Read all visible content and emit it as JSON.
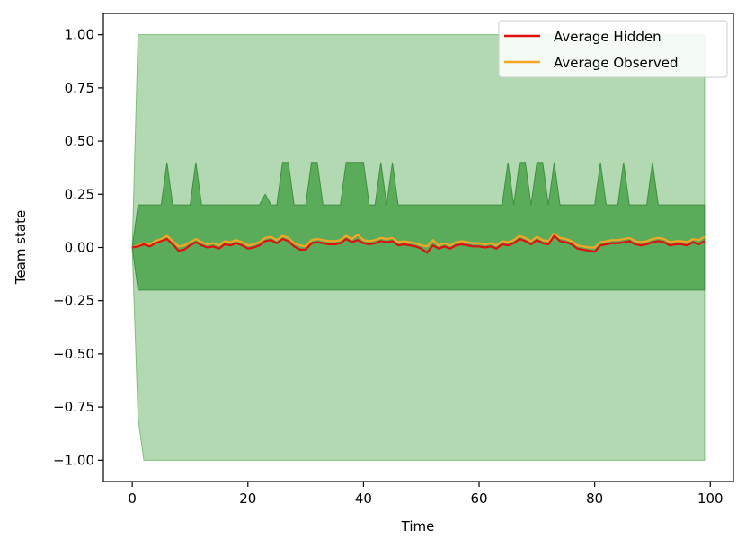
{
  "chart_data": {
    "type": "line",
    "title": "",
    "xlabel": "Time",
    "ylabel": "Team state",
    "xlim": [
      -5,
      104
    ],
    "ylim": [
      -1.1,
      1.1
    ],
    "xticks": [
      0,
      20,
      40,
      60,
      80,
      100
    ],
    "xtick_labels": [
      "0",
      "20",
      "40",
      "60",
      "80",
      "100"
    ],
    "yticks": [
      1.0,
      0.75,
      0.5,
      0.25,
      0.0,
      -0.25,
      -0.5,
      -0.75,
      -1.0
    ],
    "ytick_labels": [
      "1.00",
      "0.75",
      "0.50",
      "0.25",
      "0.00",
      "−0.25",
      "−0.50",
      "−0.75",
      "−1.00"
    ],
    "grid": false,
    "legend_position": "top-right",
    "bands": [
      {
        "color": "#b3d9b3",
        "upper": [
          [
            0,
            0
          ],
          [
            1,
            1.0
          ],
          [
            99,
            1.0
          ]
        ],
        "lower": [
          [
            0,
            0
          ],
          [
            1,
            -0.8
          ],
          [
            2,
            -1.0
          ],
          [
            99,
            -1.0
          ]
        ]
      },
      {
        "color": "#5aab5a",
        "upper": [
          [
            0,
            0
          ],
          [
            1,
            0.2
          ],
          [
            5,
            0.2
          ],
          [
            6,
            0.4
          ],
          [
            7,
            0.2
          ],
          [
            10,
            0.2
          ],
          [
            11,
            0.4
          ],
          [
            12,
            0.2
          ],
          [
            22,
            0.2
          ],
          [
            23,
            0.25
          ],
          [
            24,
            0.2
          ],
          [
            25,
            0.2
          ],
          [
            26,
            0.4
          ],
          [
            27,
            0.4
          ],
          [
            28,
            0.2
          ],
          [
            30,
            0.2
          ],
          [
            31,
            0.4
          ],
          [
            32,
            0.4
          ],
          [
            33,
            0.2
          ],
          [
            36,
            0.2
          ],
          [
            37,
            0.4
          ],
          [
            40,
            0.4
          ],
          [
            41,
            0.2
          ],
          [
            42,
            0.2
          ],
          [
            43,
            0.4
          ],
          [
            44,
            0.2
          ],
          [
            45,
            0.4
          ],
          [
            46,
            0.2
          ],
          [
            64,
            0.2
          ],
          [
            65,
            0.4
          ],
          [
            66,
            0.2
          ],
          [
            67,
            0.4
          ],
          [
            68,
            0.4
          ],
          [
            69,
            0.2
          ],
          [
            70,
            0.4
          ],
          [
            71,
            0.4
          ],
          [
            72,
            0.2
          ],
          [
            73,
            0.4
          ],
          [
            74,
            0.2
          ],
          [
            80,
            0.2
          ],
          [
            81,
            0.4
          ],
          [
            82,
            0.2
          ],
          [
            84,
            0.2
          ],
          [
            85,
            0.4
          ],
          [
            86,
            0.2
          ],
          [
            89,
            0.2
          ],
          [
            90,
            0.4
          ],
          [
            91,
            0.2
          ],
          [
            99,
            0.2
          ]
        ],
        "lower": [
          [
            0,
            0
          ],
          [
            1,
            -0.2
          ],
          [
            99,
            -0.2
          ]
        ]
      }
    ],
    "series": [
      {
        "name": "Average Hidden",
        "color": "#e01010",
        "x": [
          0,
          1,
          2,
          3,
          4,
          5,
          6,
          7,
          8,
          9,
          10,
          11,
          12,
          13,
          14,
          15,
          16,
          17,
          18,
          19,
          20,
          21,
          22,
          23,
          24,
          25,
          26,
          27,
          28,
          29,
          30,
          31,
          32,
          33,
          34,
          35,
          36,
          37,
          38,
          39,
          40,
          41,
          42,
          43,
          44,
          45,
          46,
          47,
          48,
          49,
          50,
          51,
          52,
          53,
          54,
          55,
          56,
          57,
          58,
          59,
          60,
          61,
          62,
          63,
          64,
          65,
          66,
          67,
          68,
          69,
          70,
          71,
          72,
          73,
          74,
          75,
          76,
          77,
          78,
          79,
          80,
          81,
          82,
          83,
          84,
          85,
          86,
          87,
          88,
          89,
          90,
          91,
          92,
          93,
          94,
          95,
          96,
          97,
          98,
          99
        ],
        "values": [
          0.0,
          0.005,
          0.015,
          0.005,
          0.02,
          0.03,
          0.04,
          0.015,
          -0.015,
          -0.01,
          0.01,
          0.025,
          0.01,
          0.0,
          0.005,
          -0.005,
          0.015,
          0.01,
          0.02,
          0.01,
          -0.005,
          0.0,
          0.01,
          0.03,
          0.035,
          0.02,
          0.04,
          0.03,
          0.005,
          -0.01,
          -0.01,
          0.02,
          0.025,
          0.02,
          0.015,
          0.015,
          0.02,
          0.04,
          0.025,
          0.035,
          0.02,
          0.015,
          0.02,
          0.03,
          0.025,
          0.03,
          0.01,
          0.015,
          0.01,
          0.005,
          -0.005,
          -0.025,
          0.01,
          -0.005,
          0.005,
          -0.005,
          0.01,
          0.015,
          0.01,
          0.005,
          0.005,
          0.0,
          0.005,
          -0.005,
          0.015,
          0.01,
          0.02,
          0.04,
          0.03,
          0.015,
          0.035,
          0.02,
          0.015,
          0.055,
          0.03,
          0.025,
          0.015,
          -0.005,
          -0.01,
          -0.015,
          -0.02,
          0.01,
          0.015,
          0.02,
          0.02,
          0.025,
          0.03,
          0.015,
          0.01,
          0.015,
          0.025,
          0.03,
          0.025,
          0.01,
          0.015,
          0.015,
          0.01,
          0.025,
          0.015,
          0.03
        ]
      },
      {
        "name": "Average Observed",
        "color": "#f5a623",
        "x": [
          0,
          1,
          2,
          3,
          4,
          5,
          6,
          7,
          8,
          9,
          10,
          11,
          12,
          13,
          14,
          15,
          16,
          17,
          18,
          19,
          20,
          21,
          22,
          23,
          24,
          25,
          26,
          27,
          28,
          29,
          30,
          31,
          32,
          33,
          34,
          35,
          36,
          37,
          38,
          39,
          40,
          41,
          42,
          43,
          44,
          45,
          46,
          47,
          48,
          49,
          50,
          51,
          52,
          53,
          54,
          55,
          56,
          57,
          58,
          59,
          60,
          61,
          62,
          63,
          64,
          65,
          66,
          67,
          68,
          69,
          70,
          71,
          72,
          73,
          74,
          75,
          76,
          77,
          78,
          79,
          80,
          81,
          82,
          83,
          84,
          85,
          86,
          87,
          88,
          89,
          90,
          91,
          92,
          93,
          94,
          95,
          96,
          97,
          98,
          99
        ],
        "values": [
          0.0,
          0.01,
          0.02,
          0.015,
          0.03,
          0.04,
          0.055,
          0.03,
          0.005,
          0.01,
          0.025,
          0.04,
          0.025,
          0.015,
          0.02,
          0.01,
          0.03,
          0.025,
          0.035,
          0.025,
          0.01,
          0.015,
          0.025,
          0.045,
          0.05,
          0.035,
          0.055,
          0.045,
          0.02,
          0.01,
          0.005,
          0.035,
          0.04,
          0.035,
          0.03,
          0.03,
          0.035,
          0.055,
          0.04,
          0.06,
          0.035,
          0.03,
          0.035,
          0.045,
          0.04,
          0.045,
          0.025,
          0.03,
          0.025,
          0.02,
          0.01,
          0.005,
          0.035,
          0.01,
          0.02,
          0.01,
          0.025,
          0.03,
          0.025,
          0.02,
          0.02,
          0.015,
          0.02,
          0.01,
          0.03,
          0.025,
          0.035,
          0.055,
          0.045,
          0.03,
          0.05,
          0.035,
          0.03,
          0.065,
          0.045,
          0.04,
          0.03,
          0.01,
          0.005,
          0.0,
          0.0,
          0.025,
          0.03,
          0.035,
          0.035,
          0.04,
          0.045,
          0.03,
          0.025,
          0.03,
          0.04,
          0.045,
          0.04,
          0.025,
          0.03,
          0.03,
          0.025,
          0.04,
          0.035,
          0.05
        ]
      }
    ]
  }
}
